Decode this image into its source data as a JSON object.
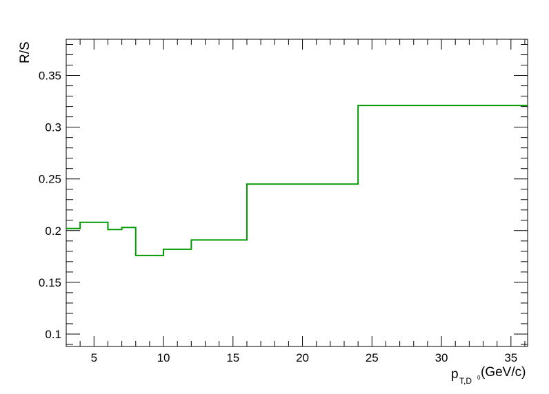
{
  "chart_data": {
    "type": "line",
    "style": "step-histogram",
    "title": "",
    "xlabel": {
      "main": "p",
      "subscript": "T,D",
      "superscript": "0",
      "unit": "(GeV/c)"
    },
    "ylabel": "R/S",
    "xlim": [
      3,
      36.2
    ],
    "ylim": [
      0.088,
      0.385
    ],
    "x_ticks": [
      5,
      10,
      15,
      20,
      25,
      30,
      35
    ],
    "x_tick_labels": [
      "5",
      "10",
      "15",
      "20",
      "25",
      "30",
      "35"
    ],
    "y_ticks": [
      0.1,
      0.15,
      0.2,
      0.25,
      0.3,
      0.35
    ],
    "y_tick_labels": [
      "0.1",
      "0.15",
      "0.2",
      "0.25",
      "0.3",
      "0.35"
    ],
    "grid": false,
    "legend": "none",
    "series": [
      {
        "color": "#009900",
        "bins": [
          {
            "x_low": 3,
            "x_high": 4,
            "value": 0.202
          },
          {
            "x_low": 4,
            "x_high": 6,
            "value": 0.208
          },
          {
            "x_low": 6,
            "x_high": 7,
            "value": 0.201
          },
          {
            "x_low": 7,
            "x_high": 8,
            "value": 0.203
          },
          {
            "x_low": 8,
            "x_high": 10,
            "value": 0.176
          },
          {
            "x_low": 10,
            "x_high": 12,
            "value": 0.182
          },
          {
            "x_low": 12,
            "x_high": 16,
            "value": 0.191
          },
          {
            "x_low": 16,
            "x_high": 24,
            "value": 0.245
          },
          {
            "x_low": 24,
            "x_high": 36.2,
            "value": 0.321
          }
        ]
      }
    ]
  }
}
